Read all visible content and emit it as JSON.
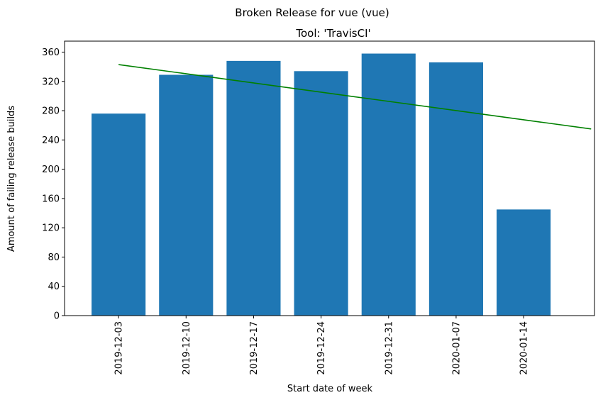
{
  "chart_data": {
    "type": "bar",
    "suptitle": "Broken Release for vue (vue)",
    "title": "Tool: 'TravisCI'",
    "xlabel": "Start date of week",
    "ylabel": "Amount of failing release builds",
    "categories": [
      "2019-12-03",
      "2019-12-10",
      "2019-12-17",
      "2019-12-24",
      "2019-12-31",
      "2020-01-07",
      "2020-01-14"
    ],
    "values": [
      276,
      329,
      348,
      334,
      358,
      346,
      145
    ],
    "ylim": [
      0,
      375
    ],
    "yticks": [
      0,
      40,
      80,
      120,
      160,
      200,
      240,
      280,
      320,
      360
    ],
    "trend_line": {
      "x_start": 0,
      "x_end": 7,
      "y_start": 343,
      "y_end": 255
    },
    "bar_color": "#1f77b4",
    "trend_color": "#008000",
    "grid": false,
    "legend": "none"
  }
}
